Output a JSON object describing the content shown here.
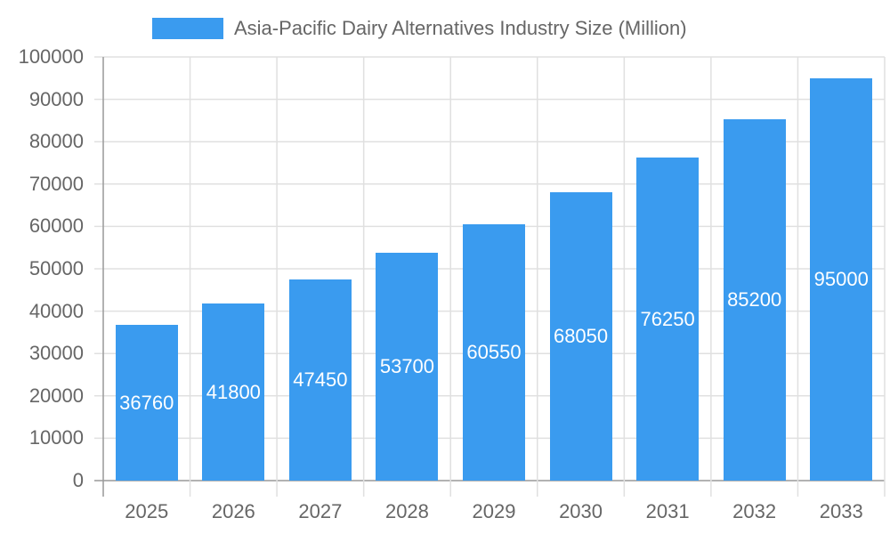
{
  "legend": {
    "label": "Asia-Pacific Dairy Alternatives Industry Size (Million)",
    "color": "#3a9bef"
  },
  "colors": {
    "bar": "#3a9bef",
    "grid": "#e0e0e0",
    "axis": "#999999",
    "text": "#666666",
    "bar_label": "#ffffff"
  },
  "chart_data": {
    "type": "bar",
    "title": "",
    "categories": [
      "2025",
      "2026",
      "2027",
      "2028",
      "2029",
      "2030",
      "2031",
      "2032",
      "2033"
    ],
    "series": [
      {
        "name": "Asia-Pacific Dairy Alternatives Industry Size (Million)",
        "values": [
          36760,
          41800,
          47450,
          53700,
          60550,
          68050,
          76250,
          85200,
          95000
        ]
      }
    ],
    "values": [
      36760,
      41800,
      47450,
      53700,
      60550,
      68050,
      76250,
      85200,
      95000
    ],
    "xlabel": "",
    "ylabel": "",
    "ylim": [
      0,
      100000
    ],
    "yticks": [
      0,
      10000,
      20000,
      30000,
      40000,
      50000,
      60000,
      70000,
      80000,
      90000,
      100000
    ],
    "grid": true,
    "legend_position": "top",
    "data_labels": true
  }
}
